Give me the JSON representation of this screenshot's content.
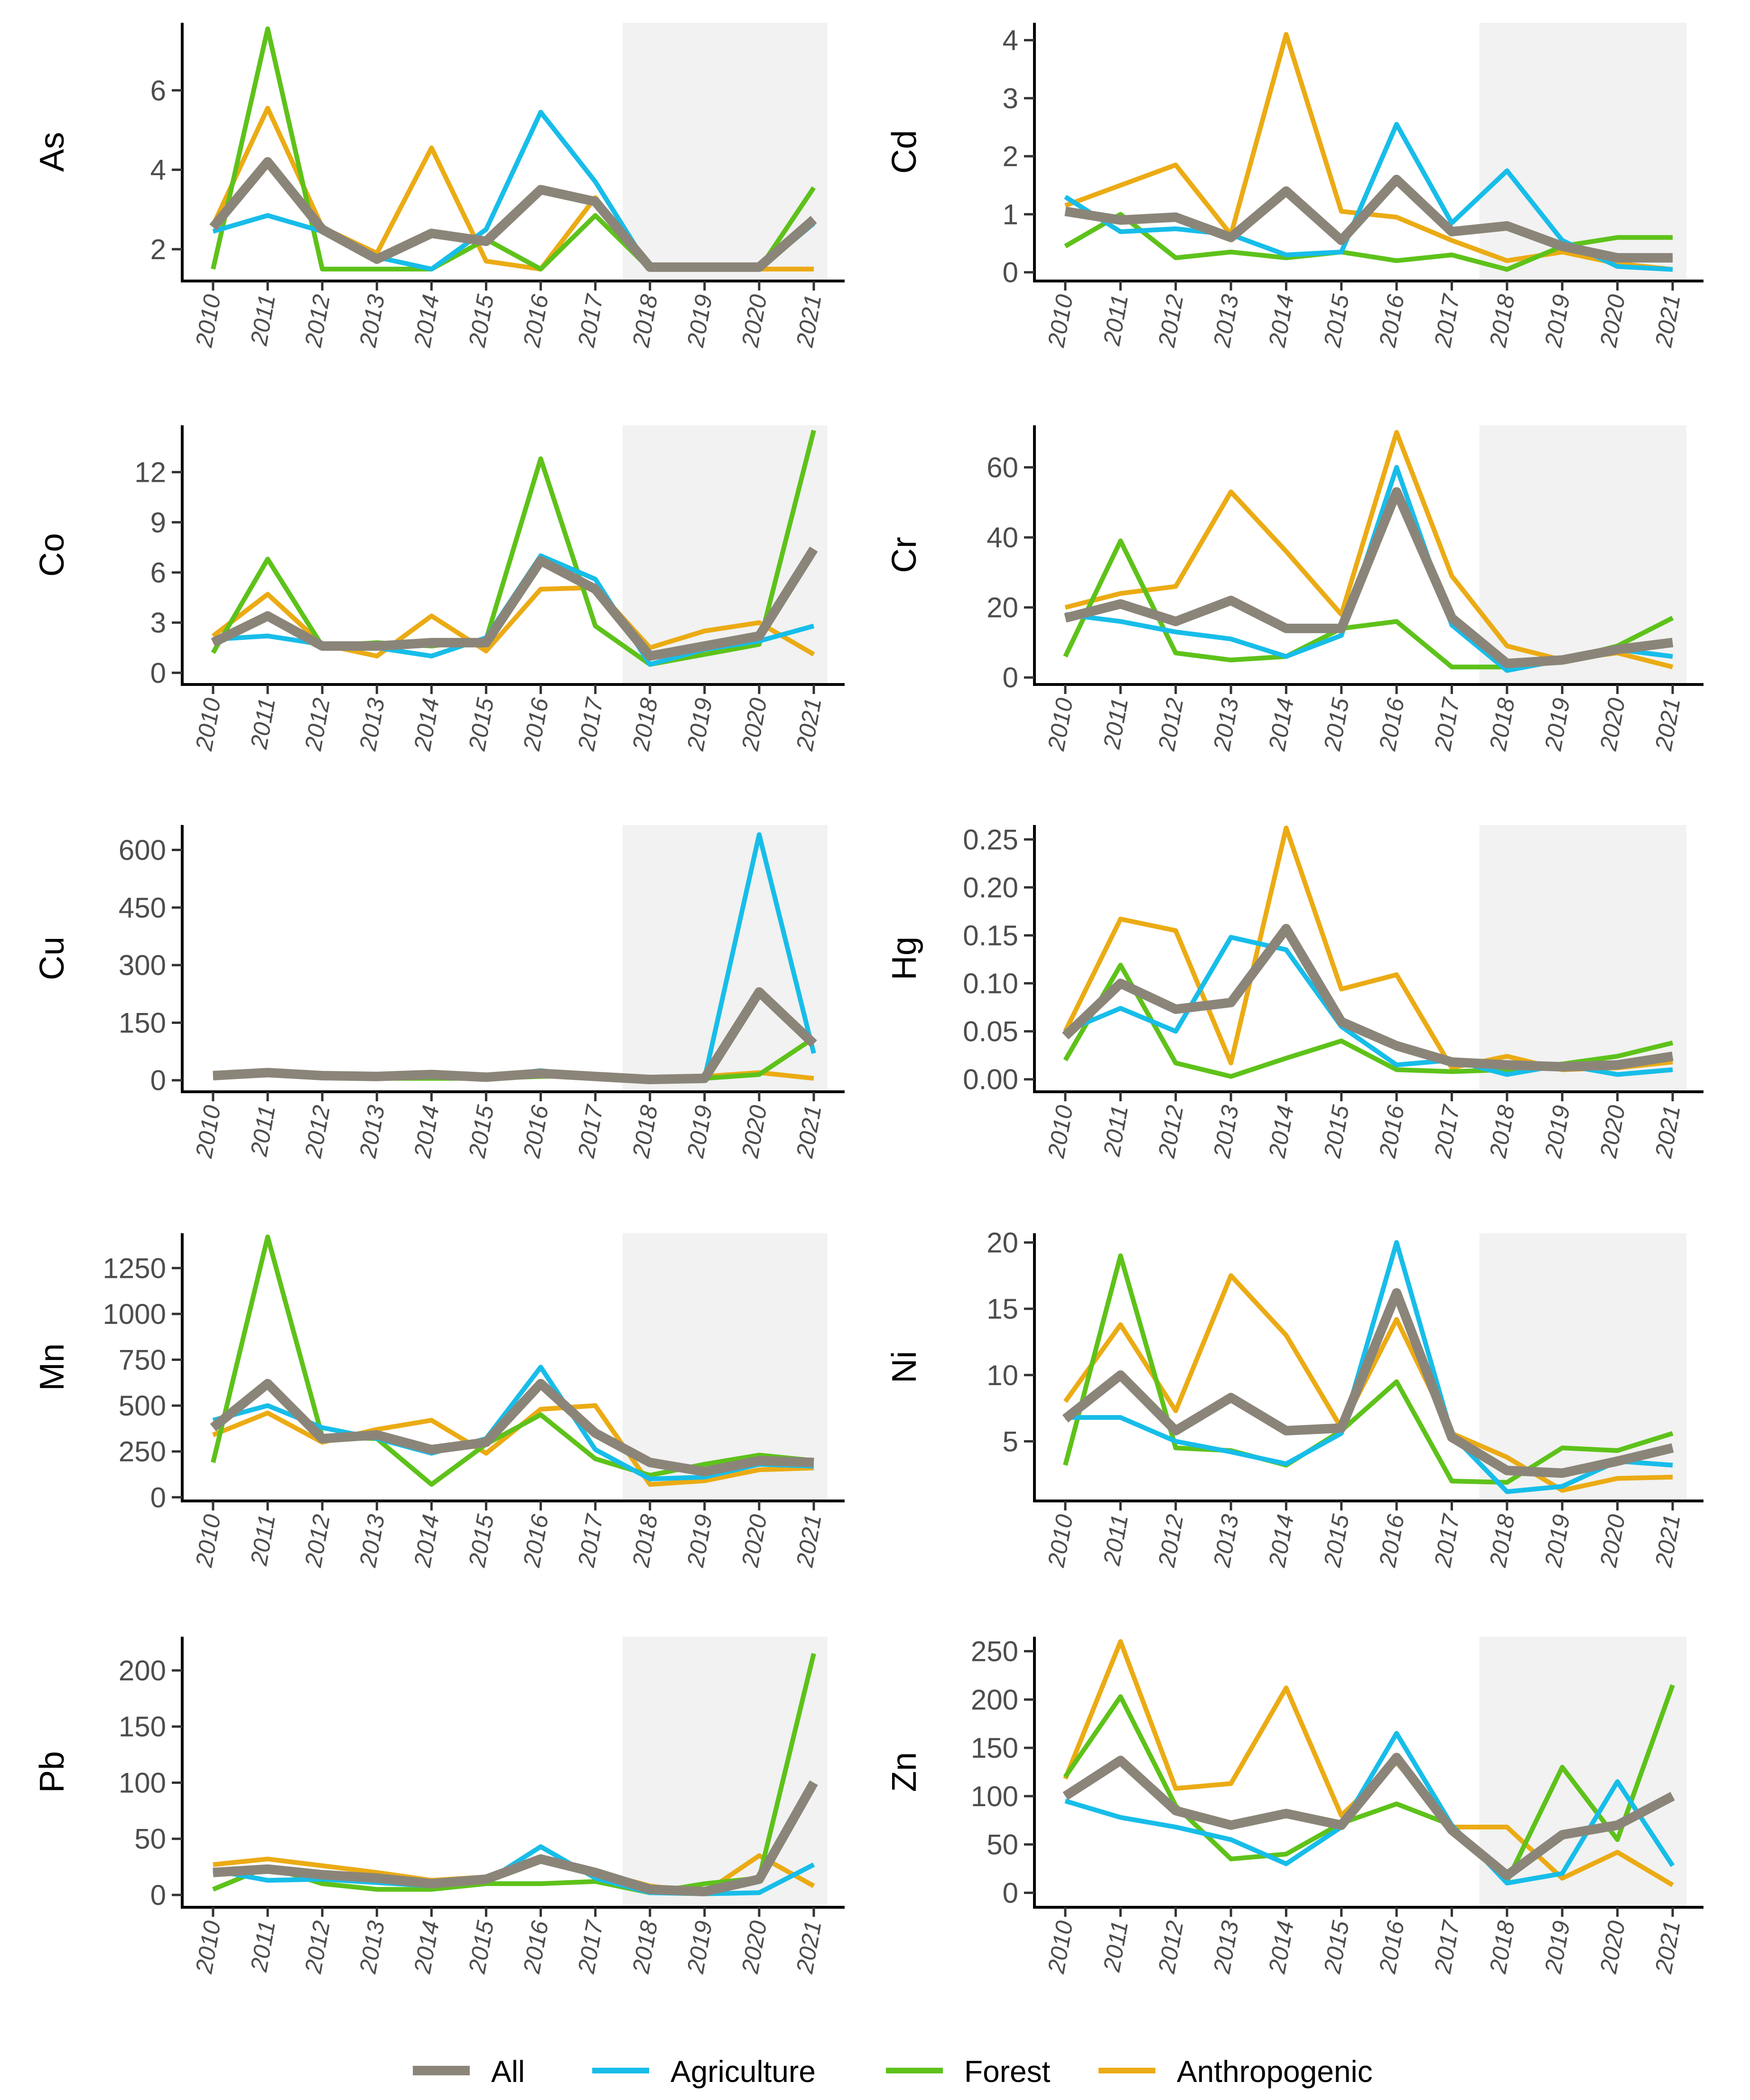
{
  "chart_data": {
    "type": "line",
    "layout": "small multiples, 5 rows x 2 columns",
    "x": [
      "2010",
      "2011",
      "2012",
      "2013",
      "2014",
      "2015",
      "2016",
      "2017",
      "2018",
      "2019",
      "2020",
      "2021"
    ],
    "shaded_x_range": [
      "2017.5",
      "2021.25"
    ],
    "colors": {
      "All": "#8b8579",
      "Agriculture": "#17bde9",
      "Forest": "#5ec21a",
      "Anthropogenic": "#ebab14",
      "shade": "#f1f2f1",
      "axis": "#000000"
    },
    "legend": {
      "position": "bottom",
      "entries": [
        "All",
        "Agriculture",
        "Forest",
        "Anthropogenic"
      ]
    },
    "panels": [
      {
        "ylabel": "As",
        "ylim": [
          1.2,
          7.7
        ],
        "yticks": [
          2,
          4,
          6
        ],
        "ytick_labels": [
          "2",
          "4",
          "6"
        ],
        "series": [
          {
            "name": "All",
            "values": [
              2.55,
              4.2,
              2.5,
              1.75,
              2.4,
              2.2,
              3.5,
              3.2,
              1.55,
              1.55,
              1.55,
              2.75
            ]
          },
          {
            "name": "Agriculture",
            "values": [
              2.45,
              2.85,
              2.45,
              1.8,
              1.5,
              2.5,
              5.45,
              3.7,
              1.5,
              1.5,
              1.5,
              2.65
            ]
          },
          {
            "name": "Forest",
            "values": [
              1.5,
              7.55,
              1.5,
              1.5,
              1.5,
              2.25,
              1.5,
              2.85,
              1.5,
              1.5,
              1.5,
              3.55
            ]
          },
          {
            "name": "Anthropogenic",
            "values": [
              2.6,
              5.55,
              2.55,
              1.9,
              4.55,
              1.7,
              1.5,
              3.3,
              1.5,
              1.5,
              1.5,
              1.5
            ]
          }
        ]
      },
      {
        "ylabel": "Cd",
        "ylim": [
          -0.15,
          4.3
        ],
        "yticks": [
          0,
          1,
          2,
          3,
          4
        ],
        "ytick_labels": [
          "0",
          "1",
          "2",
          "3",
          "4"
        ],
        "series": [
          {
            "name": "All",
            "values": [
              1.05,
              0.9,
              0.95,
              0.6,
              1.4,
              0.55,
              1.6,
              0.7,
              0.8,
              0.45,
              0.25,
              0.25
            ]
          },
          {
            "name": "Agriculture",
            "values": [
              1.3,
              0.7,
              0.75,
              0.65,
              0.3,
              0.35,
              2.55,
              0.85,
              1.75,
              0.55,
              0.1,
              0.05
            ]
          },
          {
            "name": "Forest",
            "values": [
              0.45,
              1.0,
              0.25,
              0.35,
              0.25,
              0.35,
              0.2,
              0.3,
              0.05,
              0.45,
              0.6,
              0.6
            ]
          },
          {
            "name": "Anthropogenic",
            "values": [
              1.15,
              1.5,
              1.85,
              0.65,
              4.1,
              1.05,
              0.95,
              0.55,
              0.2,
              0.35,
              0.15,
              0.05
            ]
          }
        ]
      },
      {
        "ylabel": "Co",
        "ylim": [
          -0.7,
          14.8
        ],
        "yticks": [
          0,
          3,
          6,
          9,
          12
        ],
        "ytick_labels": [
          "0",
          "3",
          "6",
          "9",
          "12"
        ],
        "series": [
          {
            "name": "All",
            "values": [
              1.8,
              3.4,
              1.6,
              1.6,
              1.8,
              1.8,
              6.7,
              5.0,
              1.0,
              1.6,
              2.2,
              7.4
            ]
          },
          {
            "name": "Agriculture",
            "values": [
              2.0,
              2.2,
              1.7,
              1.5,
              1.0,
              2.1,
              7.0,
              5.6,
              0.5,
              1.4,
              1.9,
              2.8
            ]
          },
          {
            "name": "Forest",
            "values": [
              1.2,
              6.8,
              1.6,
              1.8,
              1.6,
              2.0,
              12.8,
              2.8,
              0.5,
              1.1,
              1.7,
              14.5
            ]
          },
          {
            "name": "Anthropogenic",
            "values": [
              2.2,
              4.7,
              1.7,
              1.0,
              3.4,
              1.3,
              5.0,
              5.1,
              1.5,
              2.5,
              3.0,
              1.1
            ]
          }
        ]
      },
      {
        "ylabel": "Cr",
        "ylim": [
          -2,
          72
        ],
        "yticks": [
          0,
          20,
          40,
          60
        ],
        "ytick_labels": [
          "0",
          "20",
          "40",
          "60"
        ],
        "series": [
          {
            "name": "All",
            "values": [
              17,
              21,
              16,
              22,
              14,
              14,
              53,
              17,
              4,
              5,
              8,
              10
            ]
          },
          {
            "name": "Agriculture",
            "values": [
              18,
              16,
              13,
              11,
              6,
              12,
              60,
              15,
              2,
              5,
              8,
              6
            ]
          },
          {
            "name": "Forest",
            "values": [
              6,
              39,
              7,
              5,
              6,
              14,
              16,
              3,
              3,
              5,
              9,
              17
            ]
          },
          {
            "name": "Anthropogenic",
            "values": [
              20,
              24,
              26,
              53,
              36,
              18,
              70,
              29,
              9,
              5,
              7,
              3
            ]
          }
        ]
      },
      {
        "ylabel": "Cu",
        "ylim": [
          -30,
          665
        ],
        "yticks": [
          0,
          150,
          300,
          450,
          600
        ],
        "ytick_labels": [
          "0",
          "150",
          "300",
          "450",
          "600"
        ],
        "series": [
          {
            "name": "All",
            "values": [
              12,
              20,
              12,
              10,
              15,
              8,
              18,
              10,
              2,
              5,
              230,
              95
            ]
          },
          {
            "name": "Agriculture",
            "values": [
              12,
              15,
              10,
              8,
              12,
              10,
              25,
              10,
              5,
              5,
              640,
              70
            ]
          },
          {
            "name": "Forest",
            "values": [
              8,
              15,
              6,
              5,
              5,
              5,
              10,
              12,
              2,
              5,
              15,
              110
            ]
          },
          {
            "name": "Anthropogenic",
            "values": [
              15,
              25,
              15,
              12,
              20,
              10,
              20,
              12,
              5,
              10,
              20,
              5
            ]
          }
        ]
      },
      {
        "ylabel": "Hg",
        "ylim": [
          -0.013,
          0.265
        ],
        "yticks": [
          0.0,
          0.05,
          0.1,
          0.15,
          0.2,
          0.25
        ],
        "ytick_labels": [
          "0.00",
          "0.05",
          "0.10",
          "0.15",
          "0.20",
          "0.25"
        ],
        "series": [
          {
            "name": "All",
            "values": [
              0.045,
              0.1,
              0.073,
              0.08,
              0.157,
              0.06,
              0.035,
              0.018,
              0.015,
              0.013,
              0.015,
              0.024
            ]
          },
          {
            "name": "Agriculture",
            "values": [
              0.05,
              0.074,
              0.05,
              0.148,
              0.135,
              0.055,
              0.015,
              0.02,
              0.005,
              0.015,
              0.005,
              0.01
            ]
          },
          {
            "name": "Forest",
            "values": [
              0.02,
              0.119,
              0.017,
              0.003,
              0.022,
              0.04,
              0.01,
              0.008,
              0.01,
              0.016,
              0.024,
              0.038
            ]
          },
          {
            "name": "Anthropogenic",
            "values": [
              0.05,
              0.167,
              0.155,
              0.017,
              0.262,
              0.094,
              0.109,
              0.012,
              0.024,
              0.01,
              0.012,
              0.018
            ]
          }
        ]
      },
      {
        "ylabel": "Mn",
        "ylim": [
          -20,
          1440
        ],
        "yticks": [
          0,
          250,
          500,
          750,
          1000,
          1250
        ],
        "ytick_labels": [
          "0",
          "250",
          "500",
          "750",
          "1000",
          "1250"
        ],
        "series": [
          {
            "name": "All",
            "values": [
              380,
              620,
              320,
              340,
              260,
              300,
              620,
              350,
              190,
              140,
              200,
              190
            ]
          },
          {
            "name": "Agriculture",
            "values": [
              420,
              500,
              380,
              320,
              240,
              320,
              710,
              260,
              100,
              110,
              180,
              170
            ]
          },
          {
            "name": "Forest",
            "values": [
              190,
              1420,
              330,
              320,
              70,
              290,
              450,
              210,
              120,
              180,
              230,
              200
            ]
          },
          {
            "name": "Anthropogenic",
            "values": [
              340,
              460,
              300,
              370,
              420,
              240,
              480,
              500,
              70,
              90,
              150,
              160
            ]
          }
        ]
      },
      {
        "ylabel": "Ni",
        "ylim": [
          0.5,
          20.7
        ],
        "yticks": [
          5,
          10,
          15,
          20
        ],
        "ytick_labels": [
          "5",
          "10",
          "15",
          "20"
        ],
        "series": [
          {
            "name": "All",
            "values": [
              6.7,
              10.0,
              5.8,
              8.3,
              5.8,
              6.0,
              16.2,
              5.3,
              2.8,
              2.6,
              3.5,
              4.5
            ]
          },
          {
            "name": "Agriculture",
            "values": [
              6.8,
              6.8,
              5.0,
              4.2,
              3.3,
              5.6,
              20.0,
              5.5,
              1.2,
              1.6,
              3.5,
              3.2
            ]
          },
          {
            "name": "Forest",
            "values": [
              3.2,
              19.0,
              4.5,
              4.3,
              3.2,
              5.8,
              9.5,
              2.0,
              1.9,
              4.5,
              4.3,
              5.6
            ]
          },
          {
            "name": "Anthropogenic",
            "values": [
              8.0,
              13.8,
              7.3,
              17.5,
              13.0,
              6.0,
              14.2,
              5.6,
              3.8,
              1.3,
              2.2,
              2.3
            ]
          }
        ]
      },
      {
        "ylabel": "Pb",
        "ylim": [
          -11,
          230
        ],
        "yticks": [
          0,
          50,
          100,
          150,
          200
        ],
        "ytick_labels": [
          "0",
          "50",
          "100",
          "150",
          "200"
        ],
        "series": [
          {
            "name": "All",
            "values": [
              20,
              23,
              18,
              15,
              10,
              14,
              32,
              20,
              5,
              3,
              14,
              100
            ]
          },
          {
            "name": "Agriculture",
            "values": [
              22,
              13,
              14,
              11,
              8,
              12,
              43,
              15,
              2,
              1,
              2,
              27
            ]
          },
          {
            "name": "Forest",
            "values": [
              5,
              25,
              10,
              5,
              5,
              10,
              10,
              12,
              2,
              10,
              15,
              215
            ]
          },
          {
            "name": "Anthropogenic",
            "values": [
              27,
              32,
              26,
              20,
              13,
              16,
              30,
              21,
              8,
              2,
              35,
              8
            ]
          }
        ]
      },
      {
        "ylabel": "Zn",
        "ylim": [
          -15,
          265
        ],
        "yticks": [
          0,
          50,
          100,
          150,
          200,
          250
        ],
        "ytick_labels": [
          "0",
          "50",
          "100",
          "150",
          "200",
          "250"
        ],
        "series": [
          {
            "name": "All",
            "values": [
              100,
              137,
              85,
              70,
              82,
              70,
              140,
              65,
              18,
              60,
              70,
              100
            ]
          },
          {
            "name": "Agriculture",
            "values": [
              95,
              78,
              68,
              55,
              30,
              68,
              165,
              70,
              10,
              20,
              115,
              28
            ]
          },
          {
            "name": "Forest",
            "values": [
              120,
              203,
              90,
              35,
              40,
              72,
              92,
              70,
              12,
              130,
              55,
              215
            ]
          },
          {
            "name": "Anthropogenic",
            "values": [
              118,
              260,
              108,
              113,
              212,
              80,
              135,
              68,
              68,
              15,
              42,
              8
            ]
          }
        ]
      }
    ]
  }
}
